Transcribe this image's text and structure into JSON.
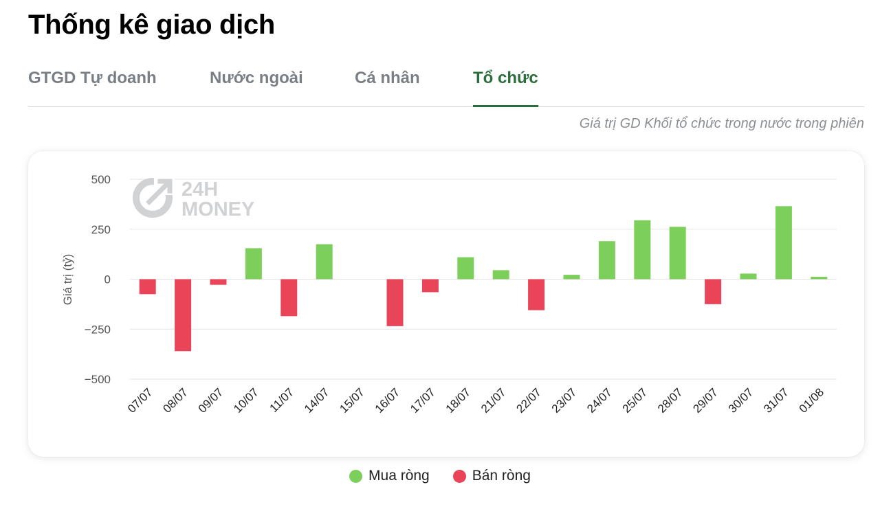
{
  "page": {
    "title": "Thống kê giao dịch",
    "subtitle": "Giá trị GD Khối tổ chức trong nước trong phiên"
  },
  "tabs": [
    {
      "label": "GTGD Tự doanh",
      "active": false
    },
    {
      "label": "Nước ngoài",
      "active": false
    },
    {
      "label": "Cá nhân",
      "active": false
    },
    {
      "label": "Tổ chức",
      "active": true
    }
  ],
  "watermark": {
    "line1": "24H",
    "line2": "MONEY"
  },
  "colors": {
    "positive": "#7ccf5a",
    "negative": "#e94457",
    "active_tab": "#2c6e3b"
  },
  "chart_data": {
    "type": "bar",
    "title": "",
    "xlabel": "",
    "ylabel": "Giá trị (tỷ)",
    "ylim": [
      -500,
      500
    ],
    "yticks": [
      500,
      250,
      0,
      -250,
      -500
    ],
    "ytick_labels": [
      "500",
      "250",
      "0",
      "−250",
      "−500"
    ],
    "grid": true,
    "legend_position": "bottom-center",
    "categories": [
      "07/07",
      "08/07",
      "09/07",
      "10/07",
      "11/07",
      "14/07",
      "15/07",
      "16/07",
      "17/07",
      "18/07",
      "21/07",
      "22/07",
      "23/07",
      "24/07",
      "25/07",
      "28/07",
      "29/07",
      "30/07",
      "31/07",
      "01/08"
    ],
    "values": [
      -75,
      -360,
      -28,
      155,
      -185,
      175,
      null,
      -235,
      -65,
      110,
      45,
      -155,
      22,
      190,
      295,
      262,
      -125,
      28,
      365,
      12
    ],
    "series_legend": [
      {
        "name": "Mua ròng",
        "color": "#7ccf5a"
      },
      {
        "name": "Bán ròng",
        "color": "#e94457"
      }
    ]
  }
}
